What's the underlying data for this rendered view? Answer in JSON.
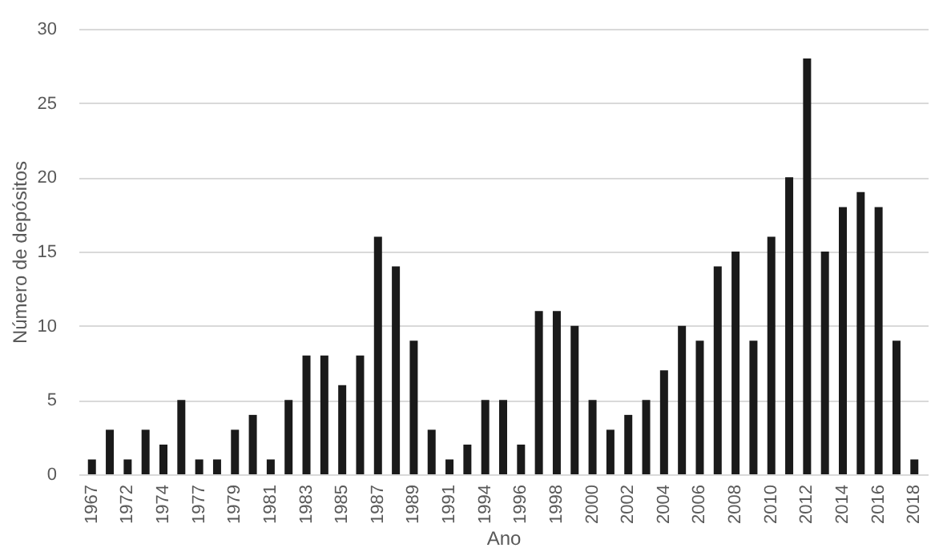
{
  "chart_data": {
    "type": "bar",
    "xlabel": "Ano",
    "ylabel": "Número de depósitos",
    "categories": [
      "1967",
      null,
      "1972",
      null,
      "1974",
      null,
      "1977",
      null,
      "1979",
      null,
      "1981",
      null,
      "1983",
      null,
      "1985",
      null,
      "1987",
      null,
      "1989",
      null,
      "1991",
      null,
      "1994",
      null,
      "1996",
      null,
      "1998",
      null,
      "2000",
      null,
      "2002",
      null,
      "2004",
      null,
      "2006",
      null,
      "2008",
      null,
      "2010",
      null,
      "2012",
      null,
      "2014",
      null,
      "2016",
      null,
      "2018"
    ],
    "values": [
      1,
      3,
      1,
      3,
      2,
      5,
      1,
      1,
      3,
      4,
      1,
      5,
      8,
      8,
      6,
      8,
      16,
      14,
      9,
      3,
      1,
      2,
      5,
      5,
      2,
      11,
      11,
      10,
      5,
      3,
      4,
      5,
      7,
      10,
      9,
      14,
      15,
      9,
      16,
      20,
      28,
      15,
      18,
      19,
      18,
      9,
      1
    ],
    "color": "#1a1a1a",
    "ylim": [
      0,
      30
    ],
    "yticks": [
      0,
      5,
      10,
      15,
      20,
      25,
      30
    ],
    "grid": "y"
  }
}
